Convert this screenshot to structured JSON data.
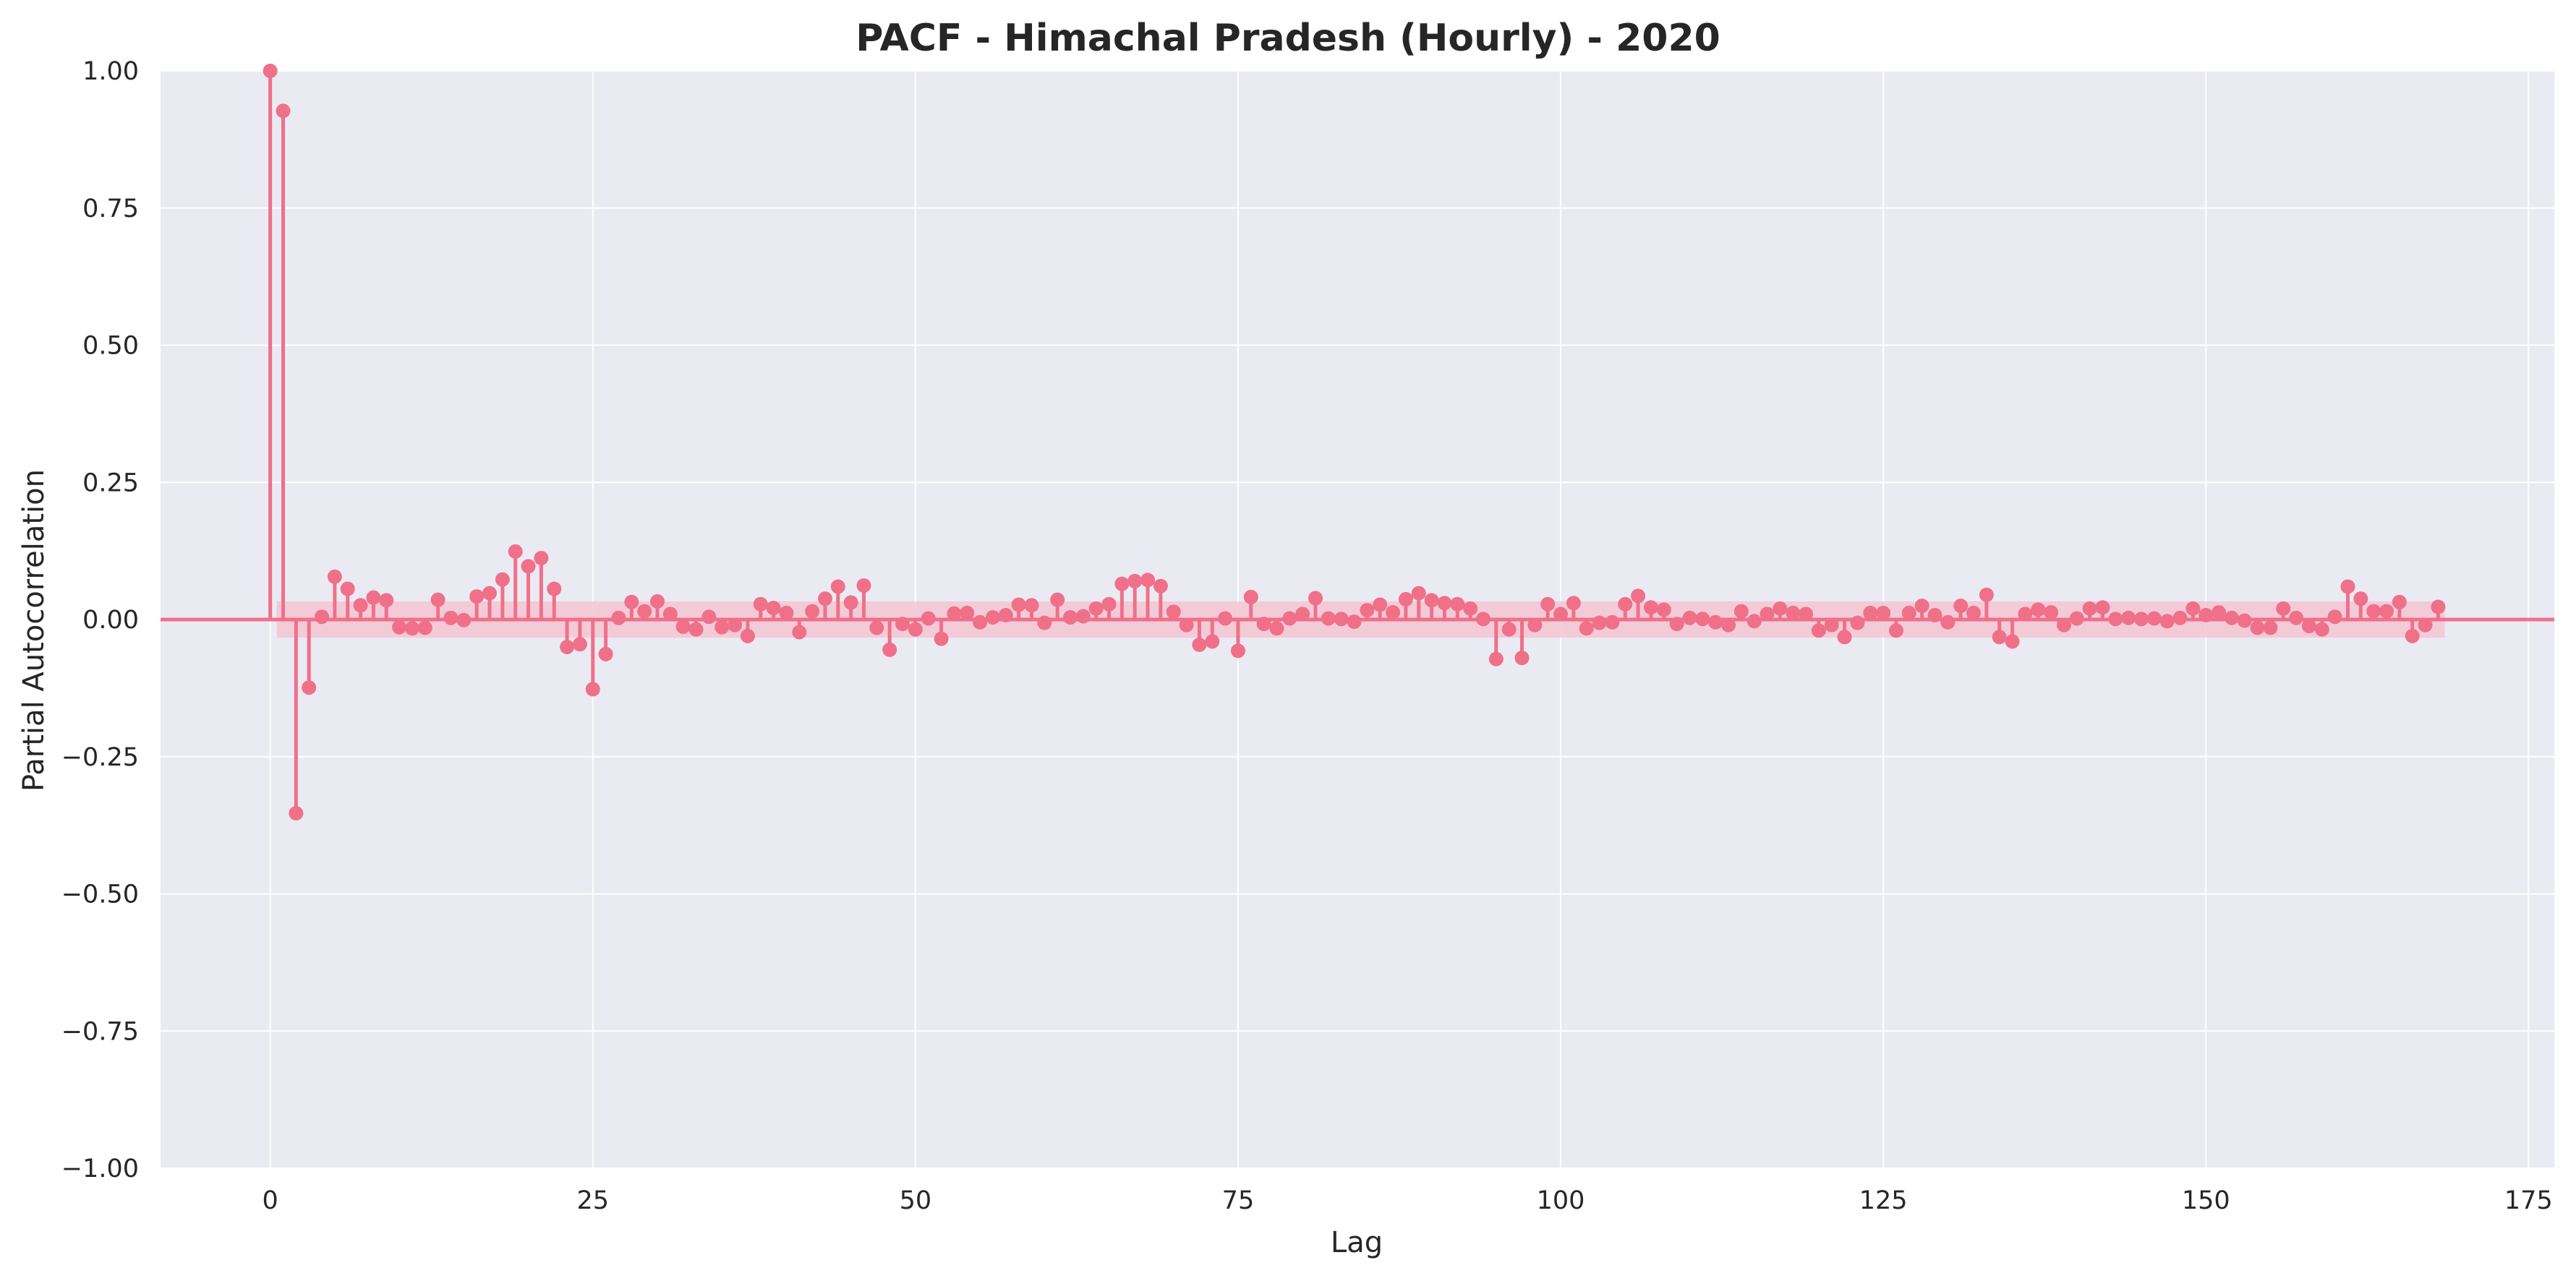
{
  "chart_data": {
    "type": "stem",
    "title": "PACF - Himachal Pradesh (Hourly) - 2020",
    "xlabel": "Lag",
    "ylabel": "Partial Autocorrelation",
    "xlim": [
      -8.5,
      177
    ],
    "ylim": [
      -1.0,
      1.0
    ],
    "xticks": [
      0,
      25,
      50,
      75,
      100,
      125,
      150,
      175
    ],
    "xtick_labels": [
      "0",
      "25",
      "50",
      "75",
      "100",
      "125",
      "150",
      "175"
    ],
    "yticks": [
      -1.0,
      -0.75,
      -0.5,
      -0.25,
      0.0,
      0.25,
      0.5,
      0.75,
      1.0
    ],
    "ytick_labels": [
      "−1.00",
      "−0.75",
      "−0.50",
      "−0.25",
      "0.00",
      "0.25",
      "0.50",
      "0.75",
      "1.00"
    ],
    "grid": true,
    "confidence_band": 0.033,
    "zero_line": 0.0,
    "colors": {
      "stem": "#f0708a",
      "band": "#f4c6d2",
      "plot_bg": "#eaeaf2",
      "grid": "#ffffff"
    },
    "lags_start": 0,
    "values": [
      1.0,
      0.927,
      -0.353,
      -0.124,
      0.005,
      0.078,
      0.056,
      0.026,
      0.04,
      0.035,
      -0.014,
      -0.016,
      -0.015,
      0.036,
      0.003,
      -0.001,
      0.042,
      0.048,
      0.073,
      0.124,
      0.097,
      0.112,
      0.056,
      -0.05,
      -0.045,
      -0.127,
      -0.063,
      0.003,
      0.032,
      0.015,
      0.033,
      0.01,
      -0.013,
      -0.018,
      0.005,
      -0.014,
      -0.01,
      -0.03,
      0.028,
      0.021,
      0.012,
      -0.023,
      0.015,
      0.038,
      0.06,
      0.031,
      0.062,
      -0.015,
      -0.055,
      -0.008,
      -0.018,
      0.002,
      -0.035,
      0.011,
      0.012,
      -0.005,
      0.004,
      0.008,
      0.027,
      0.026,
      -0.006,
      0.036,
      0.004,
      0.006,
      0.02,
      0.028,
      0.065,
      0.07,
      0.072,
      0.061,
      0.014,
      -0.01,
      -0.046,
      -0.04,
      0.002,
      -0.057,
      0.041,
      -0.008,
      -0.016,
      0.002,
      0.01,
      0.039,
      0.002,
      0.001,
      -0.004,
      0.017,
      0.027,
      0.013,
      0.037,
      0.048,
      0.035,
      0.03,
      0.028,
      0.02,
      0.001,
      -0.072,
      -0.018,
      -0.07,
      -0.01,
      0.028,
      0.01,
      0.03,
      -0.016,
      -0.006,
      -0.005,
      0.028,
      0.043,
      0.022,
      0.018,
      -0.008,
      0.003,
      0.001,
      -0.005,
      -0.01,
      0.015,
      -0.003,
      0.01,
      0.02,
      0.012,
      0.01,
      -0.02,
      -0.01,
      -0.032,
      -0.006,
      0.012,
      0.012,
      -0.02,
      0.012,
      0.025,
      0.008,
      -0.005,
      0.025,
      0.012,
      0.045,
      -0.032,
      -0.04,
      0.01,
      0.018,
      0.013,
      -0.01,
      0.002,
      0.02,
      0.022,
      0.001,
      0.003,
      0.001,
      0.002,
      -0.003,
      0.003,
      0.02,
      0.008,
      0.013,
      0.003,
      -0.002,
      -0.015,
      -0.015,
      0.02,
      0.003,
      -0.012,
      -0.018,
      0.005,
      0.06,
      0.038,
      0.015,
      0.015,
      0.032,
      -0.03,
      -0.01,
      0.023
    ]
  }
}
